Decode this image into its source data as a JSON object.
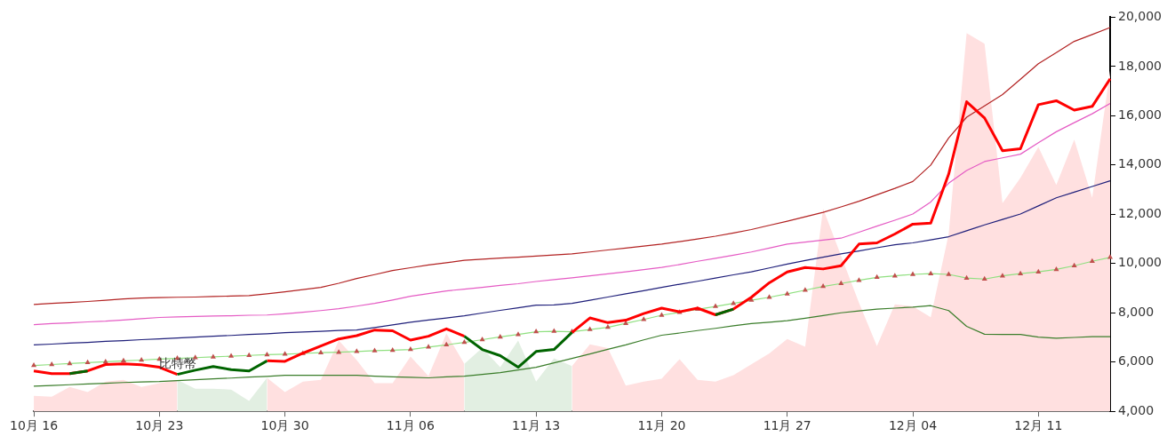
{
  "chart_data": {
    "type": "line",
    "categories": [
      "10月 16",
      null,
      null,
      null,
      null,
      null,
      null,
      "10月 23",
      null,
      null,
      null,
      null,
      null,
      null,
      "10月 30",
      null,
      null,
      null,
      null,
      null,
      null,
      "11月 06",
      null,
      null,
      null,
      null,
      null,
      null,
      "11月 13",
      null,
      null,
      null,
      null,
      null,
      null,
      "11月 20",
      null,
      null,
      null,
      null,
      null,
      null,
      "11月 27",
      null,
      null,
      null,
      null,
      null,
      null,
      "12月 04",
      null,
      null,
      null,
      null,
      null,
      null,
      "12月 11",
      null,
      null,
      null,
      null
    ],
    "series": [
      {
        "type": "area",
        "color": "#ffe0e0",
        "values": [
          4630,
          4590,
          4990,
          4780,
          5210,
          5280,
          4990,
          5140,
          5280,
          null,
          null,
          null,
          null,
          5360,
          4780,
          5210,
          5280,
          6870,
          6080,
          5140,
          5140,
          6220,
          5430,
          7160,
          5930,
          null,
          null,
          null,
          null,
          null,
          5840,
          6720,
          6570,
          5040,
          5210,
          5320,
          6120,
          5280,
          5210,
          5470,
          5910,
          6350,
          6940,
          6620,
          12230,
          10320,
          8410,
          6650,
          8340,
          8260,
          7820,
          11200,
          19360,
          18920,
          12450,
          13480,
          14730,
          13190,
          15030,
          12670,
          17830
        ]
      },
      {
        "type": "area",
        "color": "#e2efe2",
        "values": [
          null,
          null,
          null,
          null,
          null,
          null,
          null,
          null,
          5280,
          4920,
          4920,
          4880,
          4420,
          5360,
          null,
          null,
          null,
          null,
          null,
          null,
          null,
          null,
          null,
          null,
          5930,
          6580,
          5790,
          6870,
          5210,
          6150,
          5840,
          null,
          null,
          null,
          null,
          null,
          null,
          null,
          null,
          null,
          null,
          null,
          null,
          null,
          null,
          null,
          null,
          null,
          null,
          null,
          null,
          null,
          null,
          null,
          null,
          null,
          null,
          null,
          null,
          null,
          null
        ]
      },
      {
        "color": "#b22222",
        "values": [
          8340,
          8380,
          8420,
          8460,
          8510,
          8560,
          8600,
          8620,
          8630,
          8640,
          8660,
          8680,
          8700,
          8770,
          8850,
          8940,
          9030,
          9200,
          9390,
          9550,
          9720,
          9830,
          9940,
          10030,
          10130,
          10180,
          10220,
          10260,
          10300,
          10350,
          10390,
          10470,
          10550,
          10630,
          10710,
          10790,
          10890,
          11000,
          11110,
          11240,
          11380,
          11550,
          11720,
          11900,
          12080,
          12300,
          12530,
          12790,
          13050,
          13330,
          14000,
          15100,
          15940,
          16400,
          16860,
          17480,
          18110,
          18560,
          19020,
          19300,
          19580
        ]
      },
      {
        "color": "#e55bc4",
        "values": [
          7520,
          7560,
          7590,
          7630,
          7660,
          7710,
          7760,
          7810,
          7830,
          7850,
          7870,
          7880,
          7900,
          7910,
          7960,
          8020,
          8090,
          8170,
          8270,
          8380,
          8520,
          8670,
          8780,
          8890,
          8960,
          9030,
          9110,
          9180,
          9270,
          9350,
          9420,
          9500,
          9580,
          9660,
          9750,
          9840,
          9960,
          10090,
          10210,
          10340,
          10470,
          10630,
          10790,
          10870,
          10950,
          11030,
          11270,
          11520,
          11760,
          12010,
          12500,
          13260,
          13780,
          14140,
          14290,
          14440,
          14900,
          15350,
          15720,
          16080,
          16500
        ]
      },
      {
        "color": "#1f1f7a",
        "values": [
          6700,
          6730,
          6770,
          6800,
          6840,
          6870,
          6910,
          6940,
          6980,
          7010,
          7050,
          7080,
          7120,
          7150,
          7190,
          7220,
          7250,
          7280,
          7300,
          7400,
          7510,
          7620,
          7710,
          7790,
          7880,
          7990,
          8100,
          8200,
          8310,
          8320,
          8380,
          8510,
          8640,
          8770,
          8900,
          9030,
          9160,
          9280,
          9410,
          9540,
          9660,
          9820,
          9980,
          10120,
          10260,
          10390,
          10510,
          10640,
          10760,
          10840,
          10960,
          11090,
          11330,
          11570,
          11790,
          12010,
          12340,
          12670,
          12900,
          13130,
          13360
        ]
      },
      {
        "color": "#90e080",
        "marker": "triangle",
        "values": [
          5860,
          5900,
          5940,
          5980,
          6010,
          6050,
          6080,
          6120,
          6150,
          6180,
          6210,
          6240,
          6270,
          6300,
          6320,
          6350,
          6380,
          6400,
          6430,
          6460,
          6480,
          6510,
          6610,
          6700,
          6800,
          6910,
          7020,
          7120,
          7230,
          7250,
          7230,
          7320,
          7410,
          7570,
          7730,
          7900,
          8020,
          8140,
          8260,
          8380,
          8510,
          8630,
          8770,
          8920,
          9070,
          9190,
          9320,
          9440,
          9500,
          9560,
          9590,
          9560,
          9410,
          9370,
          9500,
          9590,
          9660,
          9760,
          9910,
          10090,
          10250
        ]
      },
      {
        "color": "#3a7d2a",
        "values": [
          5020,
          5050,
          5080,
          5110,
          5140,
          5170,
          5190,
          5210,
          5250,
          5280,
          5320,
          5350,
          5390,
          5420,
          5460,
          5460,
          5460,
          5460,
          5460,
          5430,
          5400,
          5380,
          5360,
          5400,
          5430,
          5500,
          5570,
          5680,
          5790,
          5970,
          6150,
          6330,
          6520,
          6700,
          6900,
          7090,
          7180,
          7280,
          7370,
          7470,
          7560,
          7620,
          7680,
          7780,
          7890,
          8000,
          8080,
          8150,
          8190,
          8230,
          8290,
          8090,
          7450,
          7130,
          7120,
          7120,
          7010,
          6970,
          7000,
          7030,
          7030
        ]
      },
      {
        "name": "比特幣",
        "color": "#ff0000",
        "values": [
          5640,
          5530,
          5530,
          5640,
          5900,
          5930,
          5890,
          5790,
          5500,
          null,
          null,
          null,
          null,
          6050,
          6030,
          6360,
          6650,
          6940,
          7070,
          7300,
          7270,
          6890,
          7050,
          7350,
          7050,
          null,
          null,
          null,
          null,
          null,
          7200,
          7790,
          7600,
          7700,
          7970,
          8190,
          8040,
          8190,
          7920,
          8150,
          8630,
          9220,
          9660,
          9840,
          9780,
          9910,
          10790,
          10840,
          11200,
          11600,
          11640,
          13630,
          16570,
          15910,
          14580,
          14660,
          16450,
          16610,
          16230,
          16380,
          17500
        ]
      },
      {
        "color": "#006400",
        "values": [
          null,
          null,
          5530,
          5640,
          null,
          null,
          null,
          null,
          5500,
          5670,
          5820,
          5690,
          5640,
          6050,
          null,
          null,
          null,
          null,
          null,
          null,
          null,
          null,
          null,
          null,
          7050,
          6510,
          6260,
          5790,
          6430,
          6510,
          7200,
          null,
          null,
          null,
          null,
          null,
          null,
          null,
          7920,
          8150,
          null,
          null,
          null,
          null,
          null,
          null,
          null,
          null,
          null,
          null,
          null,
          null,
          null,
          null,
          null,
          null,
          null,
          null,
          null,
          null,
          null
        ]
      }
    ],
    "ylim": [
      4000,
      20000
    ],
    "yticks": [
      {
        "value": 4000,
        "label": "4,000"
      },
      {
        "value": 6000,
        "label": "6,000"
      },
      {
        "value": 8000,
        "label": "8,000"
      },
      {
        "value": 10000,
        "label": "10,000"
      },
      {
        "value": 12000,
        "label": "12,000"
      },
      {
        "value": 14000,
        "label": "14,000"
      },
      {
        "value": 16000,
        "label": "16,000"
      },
      {
        "value": 18000,
        "label": "18,000"
      },
      {
        "value": 20000,
        "label": "20,000"
      }
    ],
    "grid": false,
    "legend": false
  }
}
